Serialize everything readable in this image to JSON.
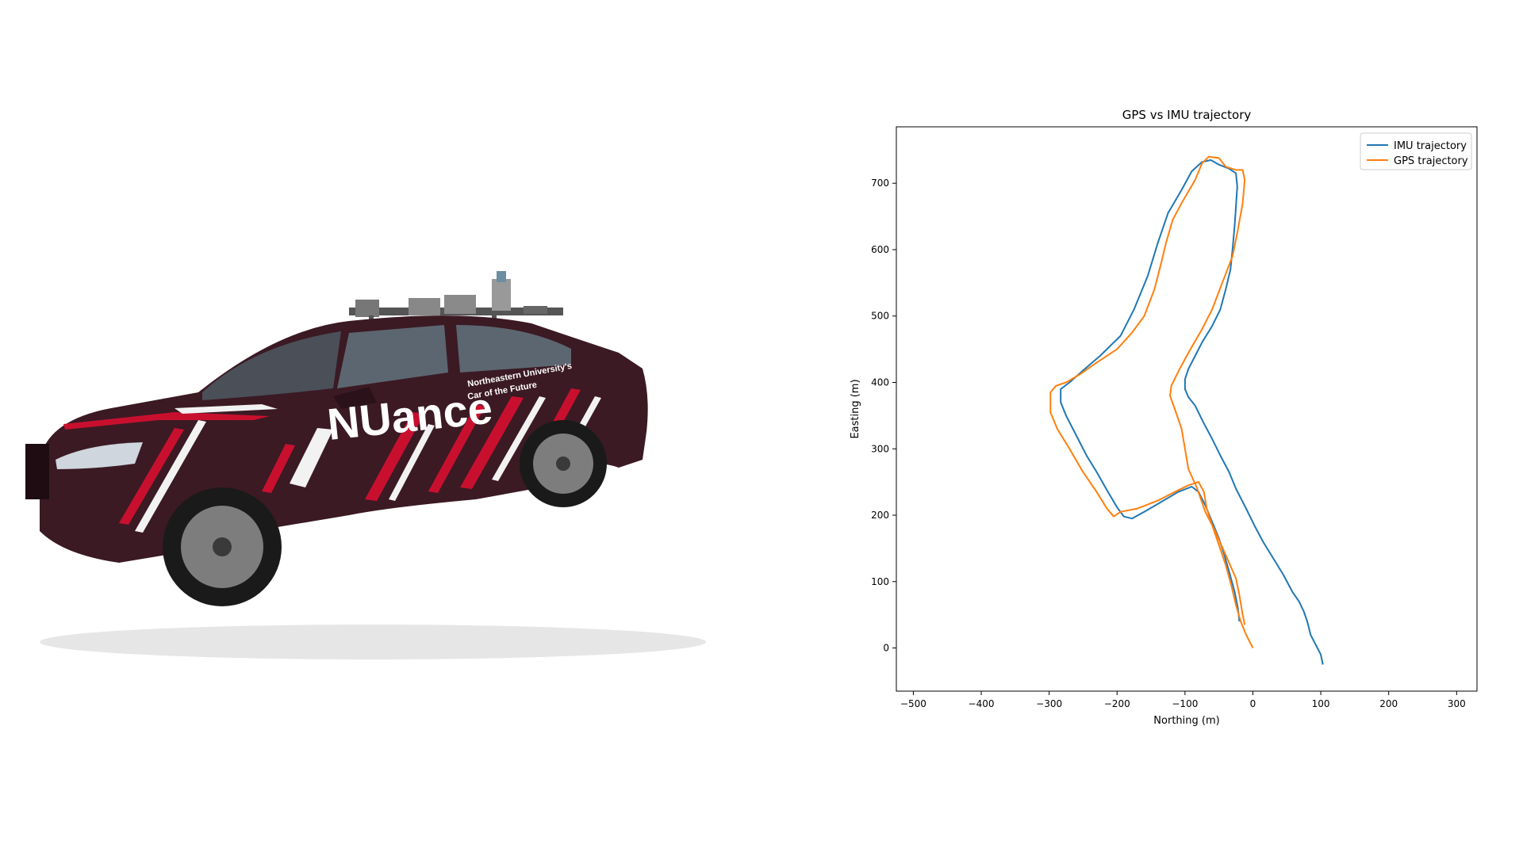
{
  "photo": {
    "subject": "car-photo",
    "decal_main": "NUance",
    "decal_line1": "Northeastern University's",
    "decal_line2": "Car of the Future",
    "colors": {
      "body": "#3b1a24",
      "stripe": "#c8102e",
      "white": "#f2f2f2"
    }
  },
  "chart_data": {
    "type": "line",
    "title": "GPS vs IMU trajectory",
    "xlabel": "Northing (m)",
    "ylabel": "Easting (m)",
    "xlim": [
      -525,
      330
    ],
    "ylim": [
      -65,
      785
    ],
    "xticks": [
      -500,
      -400,
      -300,
      -200,
      -100,
      0,
      100,
      200,
      300
    ],
    "yticks": [
      0,
      100,
      200,
      300,
      400,
      500,
      600,
      700
    ],
    "legend_position": "top-right",
    "grid": false,
    "series": [
      {
        "name": "IMU trajectory",
        "color": "#1f77b4",
        "points": [
          [
            103,
            -25
          ],
          [
            100,
            -10
          ],
          [
            95,
            0
          ],
          [
            85,
            20
          ],
          [
            80,
            40
          ],
          [
            75,
            55
          ],
          [
            68,
            70
          ],
          [
            58,
            85
          ],
          [
            45,
            110
          ],
          [
            30,
            135
          ],
          [
            15,
            160
          ],
          [
            2,
            185
          ],
          [
            -10,
            210
          ],
          [
            -25,
            240
          ],
          [
            -35,
            265
          ],
          [
            -48,
            290
          ],
          [
            -60,
            315
          ],
          [
            -73,
            340
          ],
          [
            -85,
            365
          ],
          [
            -95,
            378
          ],
          [
            -100,
            390
          ],
          [
            -100,
            405
          ],
          [
            -95,
            420
          ],
          [
            -85,
            440
          ],
          [
            -75,
            460
          ],
          [
            -60,
            485
          ],
          [
            -48,
            510
          ],
          [
            -40,
            540
          ],
          [
            -33,
            570
          ],
          [
            -30,
            600
          ],
          [
            -27,
            635
          ],
          [
            -25,
            665
          ],
          [
            -23,
            695
          ],
          [
            -25,
            715
          ],
          [
            -35,
            722
          ],
          [
            -50,
            728
          ],
          [
            -62,
            735
          ],
          [
            -75,
            732
          ],
          [
            -90,
            718
          ],
          [
            -105,
            690
          ],
          [
            -125,
            655
          ],
          [
            -140,
            610
          ],
          [
            -155,
            560
          ],
          [
            -175,
            510
          ],
          [
            -195,
            470
          ],
          [
            -225,
            440
          ],
          [
            -250,
            418
          ],
          [
            -270,
            400
          ],
          [
            -283,
            390
          ],
          [
            -283,
            370
          ],
          [
            -275,
            350
          ],
          [
            -260,
            320
          ],
          [
            -245,
            290
          ],
          [
            -230,
            265
          ],
          [
            -215,
            238
          ],
          [
            -200,
            212
          ],
          [
            -190,
            198
          ],
          [
            -178,
            195
          ],
          [
            -160,
            205
          ],
          [
            -135,
            220
          ],
          [
            -110,
            235
          ],
          [
            -90,
            243
          ],
          [
            -80,
            235
          ],
          [
            -70,
            215
          ],
          [
            -60,
            190
          ],
          [
            -50,
            165
          ],
          [
            -42,
            140
          ],
          [
            -35,
            115
          ],
          [
            -27,
            85
          ],
          [
            -22,
            60
          ],
          [
            -20,
            40
          ]
        ]
      },
      {
        "name": "GPS trajectory",
        "color": "#ff7f0e",
        "points": [
          [
            0,
            0
          ],
          [
            -5,
            10
          ],
          [
            -10,
            20
          ],
          [
            -18,
            40
          ],
          [
            -25,
            65
          ],
          [
            -32,
            95
          ],
          [
            -40,
            125
          ],
          [
            -50,
            155
          ],
          [
            -60,
            185
          ],
          [
            -68,
            210
          ],
          [
            -72,
            235
          ],
          [
            -80,
            250
          ],
          [
            -95,
            245
          ],
          [
            -115,
            235
          ],
          [
            -140,
            222
          ],
          [
            -170,
            210
          ],
          [
            -195,
            205
          ],
          [
            -205,
            198
          ],
          [
            -215,
            210
          ],
          [
            -230,
            235
          ],
          [
            -250,
            265
          ],
          [
            -270,
            300
          ],
          [
            -288,
            330
          ],
          [
            -298,
            355
          ],
          [
            -298,
            385
          ],
          [
            -290,
            395
          ],
          [
            -275,
            400
          ],
          [
            -255,
            412
          ],
          [
            -230,
            430
          ],
          [
            -200,
            450
          ],
          [
            -178,
            475
          ],
          [
            -160,
            500
          ],
          [
            -145,
            540
          ],
          [
            -135,
            580
          ],
          [
            -128,
            610
          ],
          [
            -118,
            645
          ],
          [
            -105,
            670
          ],
          [
            -85,
            705
          ],
          [
            -75,
            730
          ],
          [
            -65,
            740
          ],
          [
            -50,
            738
          ],
          [
            -40,
            725
          ],
          [
            -25,
            720
          ],
          [
            -15,
            720
          ],
          [
            -12,
            705
          ],
          [
            -15,
            670
          ],
          [
            -22,
            630
          ],
          [
            -30,
            590
          ],
          [
            -45,
            550
          ],
          [
            -60,
            510
          ],
          [
            -75,
            480
          ],
          [
            -92,
            450
          ],
          [
            -108,
            420
          ],
          [
            -120,
            395
          ],
          [
            -122,
            380
          ],
          [
            -115,
            360
          ],
          [
            -105,
            330
          ],
          [
            -100,
            300
          ],
          [
            -95,
            270
          ],
          [
            -82,
            240
          ],
          [
            -70,
            205
          ],
          [
            -55,
            175
          ],
          [
            -40,
            140
          ],
          [
            -25,
            105
          ],
          [
            -20,
            80
          ],
          [
            -15,
            50
          ],
          [
            -12,
            35
          ]
        ]
      }
    ]
  }
}
